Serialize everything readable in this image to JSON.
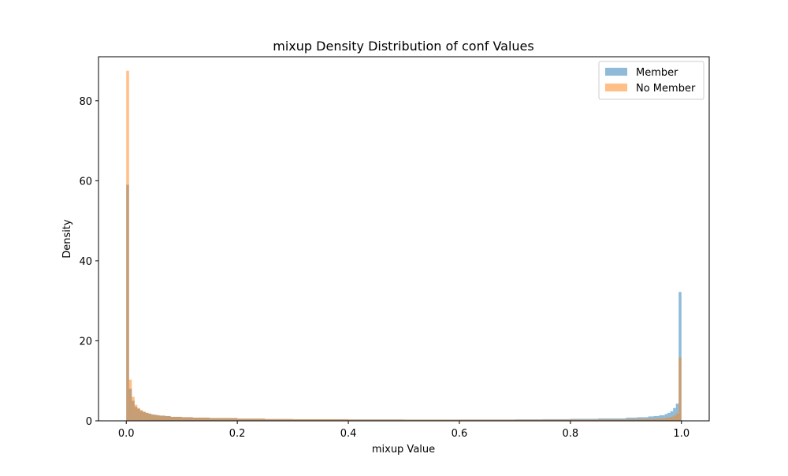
{
  "chart_data": {
    "type": "histogram",
    "title": "mixup Density Distribution of conf Values",
    "xlabel": "mixup Value",
    "ylabel": "Density",
    "xlim": [
      -0.05,
      1.05
    ],
    "ylim": [
      0,
      91
    ],
    "xticks": [
      "0.0",
      "0.2",
      "0.4",
      "0.6",
      "0.8",
      "1.0"
    ],
    "yticks": [
      "0",
      "20",
      "40",
      "60",
      "80"
    ],
    "bin_width": 0.005,
    "legend_position": "upper right",
    "series": [
      {
        "name": "Member",
        "color": "#1f77b4",
        "alpha": 0.5,
        "bins": [
          [
            0.0,
            59.0
          ],
          [
            0.005,
            8.0
          ],
          [
            0.01,
            5.0
          ],
          [
            0.015,
            3.5
          ],
          [
            0.02,
            3.0
          ],
          [
            0.025,
            2.5
          ],
          [
            0.03,
            2.2
          ],
          [
            0.035,
            2.0
          ],
          [
            0.04,
            1.8
          ],
          [
            0.045,
            1.6
          ],
          [
            0.05,
            1.5
          ],
          [
            0.055,
            1.4
          ],
          [
            0.06,
            1.3
          ],
          [
            0.07,
            1.2
          ],
          [
            0.08,
            1.0
          ],
          [
            0.1,
            0.9
          ],
          [
            0.12,
            0.8
          ],
          [
            0.15,
            0.7
          ],
          [
            0.2,
            0.55
          ],
          [
            0.25,
            0.45
          ],
          [
            0.3,
            0.4
          ],
          [
            0.4,
            0.35
          ],
          [
            0.5,
            0.32
          ],
          [
            0.6,
            0.33
          ],
          [
            0.7,
            0.38
          ],
          [
            0.75,
            0.42
          ],
          [
            0.8,
            0.5
          ],
          [
            0.85,
            0.6
          ],
          [
            0.9,
            0.8
          ],
          [
            0.92,
            0.9
          ],
          [
            0.94,
            1.1
          ],
          [
            0.95,
            1.2
          ],
          [
            0.96,
            1.4
          ],
          [
            0.97,
            1.7
          ],
          [
            0.975,
            2.0
          ],
          [
            0.98,
            2.4
          ],
          [
            0.985,
            3.2
          ],
          [
            0.99,
            4.3
          ],
          [
            0.995,
            32.2
          ]
        ]
      },
      {
        "name": "No Member",
        "color": "#ff7f0e",
        "alpha": 0.5,
        "bins": [
          [
            0.0,
            87.5
          ],
          [
            0.005,
            10.3
          ],
          [
            0.01,
            6.0
          ],
          [
            0.015,
            4.0
          ],
          [
            0.02,
            3.2
          ],
          [
            0.025,
            2.7
          ],
          [
            0.03,
            2.3
          ],
          [
            0.035,
            2.0
          ],
          [
            0.04,
            1.8
          ],
          [
            0.045,
            1.6
          ],
          [
            0.05,
            1.5
          ],
          [
            0.055,
            1.4
          ],
          [
            0.06,
            1.3
          ],
          [
            0.07,
            1.15
          ],
          [
            0.08,
            1.0
          ],
          [
            0.1,
            0.9
          ],
          [
            0.12,
            0.8
          ],
          [
            0.15,
            0.7
          ],
          [
            0.2,
            0.55
          ],
          [
            0.25,
            0.45
          ],
          [
            0.3,
            0.4
          ],
          [
            0.4,
            0.33
          ],
          [
            0.5,
            0.3
          ],
          [
            0.6,
            0.28
          ],
          [
            0.7,
            0.28
          ],
          [
            0.75,
            0.3
          ],
          [
            0.8,
            0.32
          ],
          [
            0.85,
            0.35
          ],
          [
            0.9,
            0.4
          ],
          [
            0.92,
            0.45
          ],
          [
            0.94,
            0.5
          ],
          [
            0.95,
            0.55
          ],
          [
            0.96,
            0.6
          ],
          [
            0.97,
            0.7
          ],
          [
            0.975,
            0.85
          ],
          [
            0.98,
            1.0
          ],
          [
            0.985,
            1.3
          ],
          [
            0.99,
            1.8
          ],
          [
            0.995,
            15.8
          ]
        ]
      }
    ]
  }
}
